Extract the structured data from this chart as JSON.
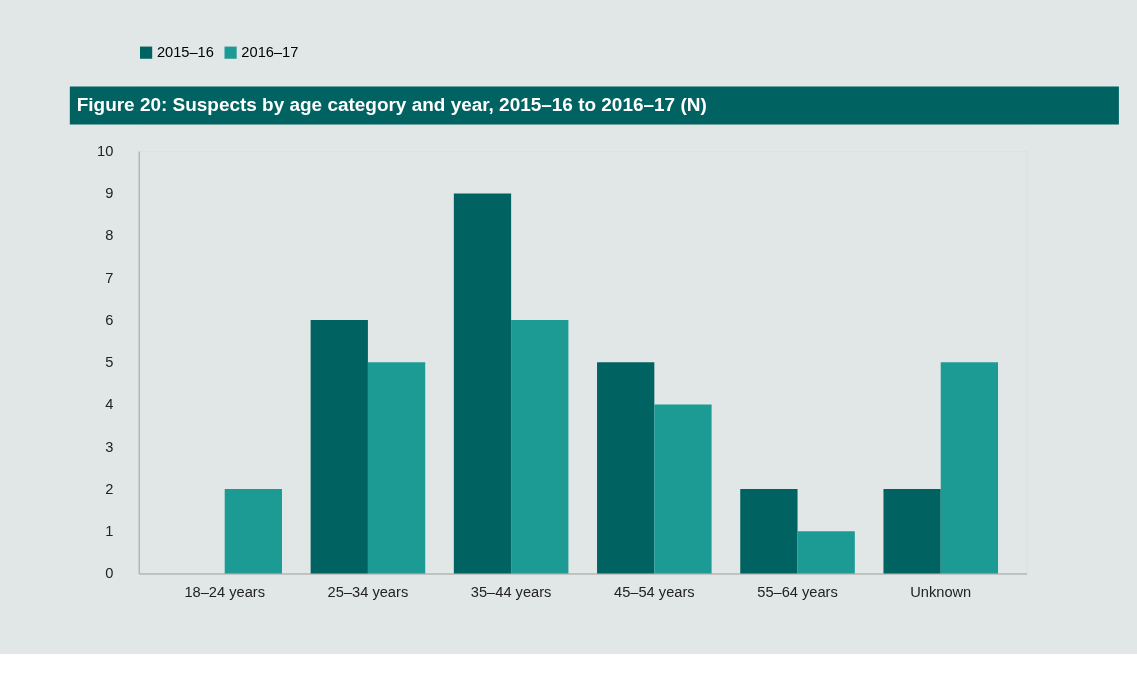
{
  "chart_data": {
    "type": "bar",
    "title": "Figure 20: Suspects by age category and year, 2015–16 to 2016–17 (N)",
    "categories": [
      "18–24 years",
      "25–34 years",
      "35–44 years",
      "45–54 years",
      "55–64 years",
      "Unknown"
    ],
    "series": [
      {
        "name": "2015–16",
        "color": "#006361",
        "values": [
          0,
          6,
          9,
          5,
          2,
          2
        ]
      },
      {
        "name": "2016–17",
        "color": "#1c9b94",
        "values": [
          2,
          5,
          6,
          4,
          1,
          5
        ]
      }
    ],
    "ylim": [
      0,
      10
    ],
    "yticks": [
      0,
      1,
      2,
      3,
      4,
      5,
      6,
      7,
      8,
      9,
      10
    ],
    "grid": false,
    "legend": "top"
  }
}
